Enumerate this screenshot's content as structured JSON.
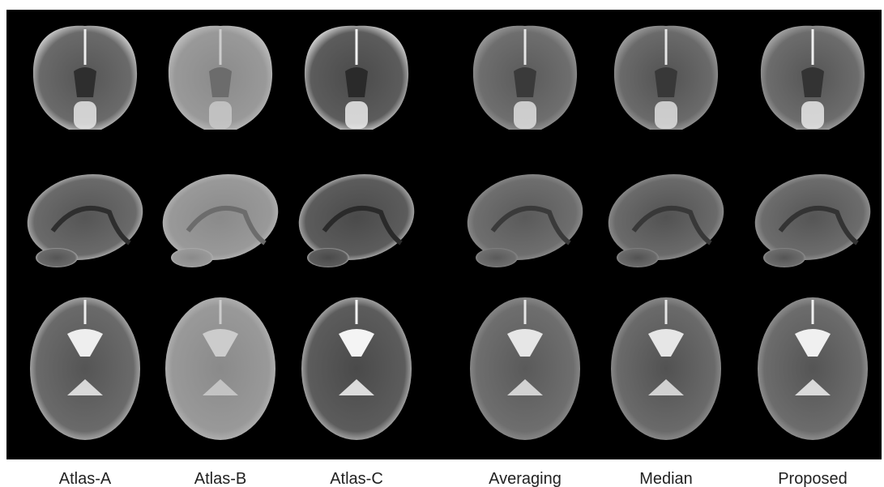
{
  "labels": [
    "Atlas-A",
    "Atlas-B",
    "Atlas-C",
    "Averaging",
    "Median",
    "Proposed"
  ]
}
